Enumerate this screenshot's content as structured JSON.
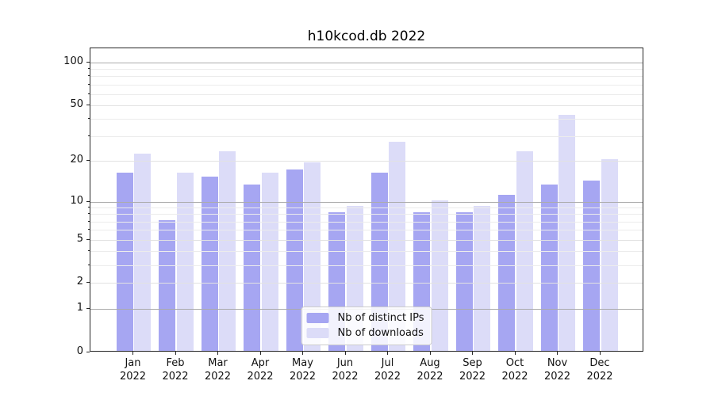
{
  "title": "h10kcod.db 2022",
  "chart_data": {
    "type": "bar",
    "title": "h10kcod.db 2022",
    "categories": [
      "Jan 2022",
      "Feb 2022",
      "Mar 2022",
      "Apr 2022",
      "May 2022",
      "Jun 2022",
      "Jul 2022",
      "Aug 2022",
      "Sep 2022",
      "Oct 2022",
      "Nov 2022",
      "Dec 2022"
    ],
    "series": [
      {
        "name": "Nb of distinct IPs",
        "color": "#a6a6f2",
        "values": [
          16,
          7,
          15,
          13,
          17,
          8,
          16,
          8,
          8,
          11,
          13,
          14
        ]
      },
      {
        "name": "Nb of downloads",
        "color": "#dcdcf8",
        "values": [
          22,
          16,
          23,
          16,
          19,
          9,
          27,
          10,
          9,
          23,
          42,
          20
        ]
      }
    ],
    "xlabel": "",
    "ylabel": "",
    "yscale": "log1p",
    "ylim": [
      0,
      126
    ],
    "y_tick_labels": [
      "100",
      "50",
      "20",
      "10",
      "5",
      "2",
      "1",
      "0"
    ],
    "y_gridlines": {
      "major": [
        1,
        10,
        100
      ],
      "mid": [
        2,
        5,
        20,
        50
      ],
      "minor": [
        3,
        4,
        6,
        7,
        8,
        9,
        30,
        40,
        60,
        70,
        80,
        90
      ]
    },
    "grid": true,
    "legend_position": "lower center"
  },
  "colors": {
    "bar_distinct_ips": "#a6a6f2",
    "bar_downloads": "#dcdcf8",
    "grid_major": "#ababab",
    "grid_minor": "#ececec",
    "spine": "#262626",
    "background": "#ffffff"
  }
}
